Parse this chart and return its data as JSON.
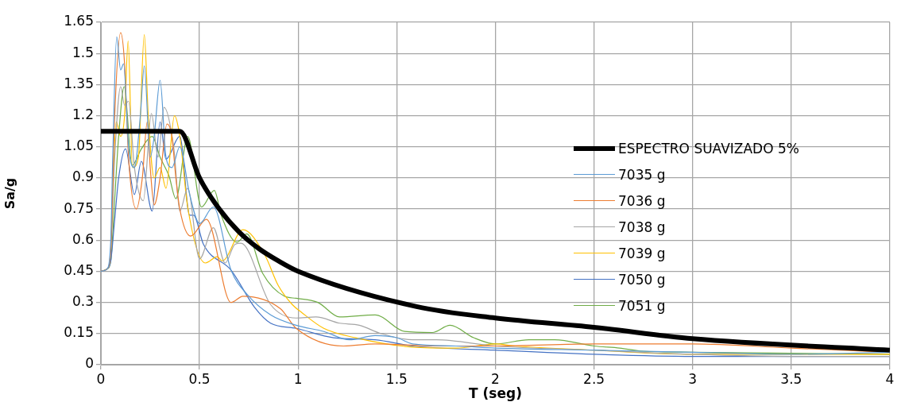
{
  "chart_data": {
    "type": "line",
    "xlabel": "T (seg)",
    "ylabel": "Sa/g",
    "xlim": [
      0,
      4
    ],
    "xticks": [
      0,
      0.5,
      1,
      1.5,
      2,
      2.5,
      3,
      3.5,
      4
    ],
    "ylim": [
      0,
      1.65
    ],
    "yticks": [
      0,
      0.15,
      0.3,
      0.45,
      0.6,
      0.75,
      0.9,
      1.05,
      1.2,
      1.35,
      1.5,
      1.65
    ],
    "grid": true,
    "legend": "right",
    "marker": "none",
    "series": [
      {
        "name": "ESPECTRO SUAVIZADO 5%",
        "color": "#000000",
        "x": [
          0,
          0.4,
          0.5,
          0.6,
          0.7,
          0.8,
          0.9,
          1,
          1.6,
          2,
          2.5,
          3,
          4
        ],
        "values": [
          1.125,
          1.125,
          0.9,
          0.75,
          0.64,
          0.56,
          0.5,
          0.45,
          0.28,
          0.225,
          0.18,
          0.125,
          0.07
        ]
      },
      {
        "name": "7035 g",
        "color": "#5b9bd5",
        "x": [
          0,
          0.03,
          0.05,
          0.06,
          0.08,
          0.1,
          0.115,
          0.14,
          0.17,
          0.2,
          0.22,
          0.25,
          0.27,
          0.3,
          0.33,
          0.36,
          0.4,
          0.45,
          0.5,
          0.57,
          0.66,
          0.74,
          0.86,
          0.99,
          1.13,
          1.26,
          1.39,
          1.5,
          1.58,
          1.8,
          2,
          2.5,
          3,
          3.5,
          4
        ],
        "values": [
          0.45,
          0.46,
          0.6,
          1.0,
          1.58,
          1.42,
          1.45,
          1.05,
          0.95,
          1.2,
          1.44,
          1.0,
          1.1,
          1.37,
          1.0,
          0.95,
          1.05,
          0.82,
          0.68,
          0.76,
          0.455,
          0.34,
          0.24,
          0.19,
          0.16,
          0.12,
          0.14,
          0.13,
          0.1,
          0.09,
          0.08,
          0.07,
          0.06,
          0.05,
          0.06
        ]
      },
      {
        "name": "7036 g",
        "color": "#ed7d31",
        "x": [
          0,
          0.03,
          0.05,
          0.07,
          0.1,
          0.12,
          0.14,
          0.18,
          0.21,
          0.235,
          0.25,
          0.27,
          0.3,
          0.335,
          0.36,
          0.38,
          0.4,
          0.455,
          0.535,
          0.66,
          0.72,
          0.91,
          0.99,
          1.23,
          1.39,
          1.7,
          2,
          2.5,
          3,
          3.5,
          4
        ],
        "values": [
          0.45,
          0.46,
          0.55,
          1.2,
          1.6,
          1.45,
          1.0,
          0.75,
          0.9,
          1.17,
          0.95,
          0.77,
          0.9,
          1.16,
          1.1,
          0.9,
          0.75,
          0.62,
          0.7,
          0.3,
          0.33,
          0.27,
          0.175,
          0.09,
          0.1,
          0.09,
          0.09,
          0.1,
          0.1,
          0.08,
          0.06
        ]
      },
      {
        "name": "7038 g",
        "color": "#a5a5a5",
        "x": [
          0,
          0.03,
          0.05,
          0.07,
          0.1,
          0.12,
          0.14,
          0.17,
          0.215,
          0.256,
          0.29,
          0.32,
          0.37,
          0.4,
          0.44,
          0.5,
          0.57,
          0.63,
          0.68,
          0.71,
          0.86,
          0.99,
          1.09,
          1.21,
          1.31,
          1.42,
          1.58,
          1.7,
          2,
          2.5,
          3,
          3.5,
          4
        ],
        "values": [
          0.45,
          0.46,
          0.55,
          1.0,
          1.34,
          1.25,
          1.27,
          0.95,
          0.79,
          1.21,
          1.0,
          1.24,
          1.04,
          0.74,
          0.85,
          0.51,
          0.66,
          0.49,
          0.58,
          0.585,
          0.29,
          0.225,
          0.23,
          0.2,
          0.19,
          0.15,
          0.12,
          0.12,
          0.09,
          0.07,
          0.05,
          0.04,
          0.04
        ]
      },
      {
        "name": "7039 g",
        "color": "#ffc000",
        "x": [
          0.05,
          0.078,
          0.1,
          0.12,
          0.138,
          0.16,
          0.19,
          0.22,
          0.24,
          0.27,
          0.3,
          0.33,
          0.373,
          0.4,
          0.44,
          0.53,
          0.59,
          0.615,
          0.72,
          0.83,
          0.9,
          0.97,
          1.02,
          1.13,
          1.29,
          1.58,
          1.8,
          2,
          2.1,
          2.5,
          3,
          3.5,
          4
        ],
        "values": [
          0.55,
          1.17,
          1.1,
          1.2,
          1.56,
          0.95,
          1.0,
          1.59,
          1.2,
          0.9,
          0.95,
          0.85,
          1.2,
          1.1,
          0.76,
          0.49,
          0.52,
          0.5,
          0.65,
          0.53,
          0.38,
          0.29,
          0.25,
          0.175,
          0.13,
          0.085,
          0.08,
          0.1,
          0.09,
          0.07,
          0.05,
          0.05,
          0.05
        ]
      },
      {
        "name": "7050 g",
        "color": "#4472c4",
        "x": [
          0,
          0.03,
          0.05,
          0.07,
          0.09,
          0.125,
          0.17,
          0.205,
          0.26,
          0.3,
          0.33,
          0.4,
          0.45,
          0.47,
          0.52,
          0.66,
          0.78,
          0.86,
          0.99,
          1.18,
          1.39,
          1.58,
          2,
          2.5,
          3,
          3.5,
          4
        ],
        "values": [
          0.45,
          0.46,
          0.5,
          0.7,
          0.9,
          1.04,
          0.82,
          0.98,
          0.74,
          1.17,
          0.99,
          1.1,
          0.72,
          0.72,
          0.58,
          0.455,
          0.275,
          0.2,
          0.175,
          0.13,
          0.12,
          0.09,
          0.07,
          0.05,
          0.04,
          0.04,
          0.04
        ]
      },
      {
        "name": "7051 g",
        "color": "#70ad47",
        "x": [
          0,
          0.03,
          0.05,
          0.07,
          0.09,
          0.118,
          0.158,
          0.205,
          0.26,
          0.3,
          0.345,
          0.38,
          0.44,
          0.51,
          0.575,
          0.61,
          0.69,
          0.74,
          0.82,
          0.93,
          0.99,
          1.1,
          1.21,
          1.39,
          1.54,
          1.68,
          1.77,
          1.89,
          2,
          2.17,
          2.3,
          2.5,
          2.63,
          2.75,
          3,
          4
        ],
        "values": [
          0.45,
          0.46,
          0.5,
          0.8,
          1.1,
          1.34,
          0.96,
          1.04,
          1.1,
          1.0,
          0.91,
          0.8,
          1.1,
          0.76,
          0.84,
          0.72,
          0.59,
          0.63,
          0.44,
          0.33,
          0.32,
          0.3,
          0.23,
          0.24,
          0.16,
          0.155,
          0.19,
          0.13,
          0.1,
          0.12,
          0.12,
          0.09,
          0.08,
          0.065,
          0.06,
          0.05
        ]
      }
    ]
  }
}
